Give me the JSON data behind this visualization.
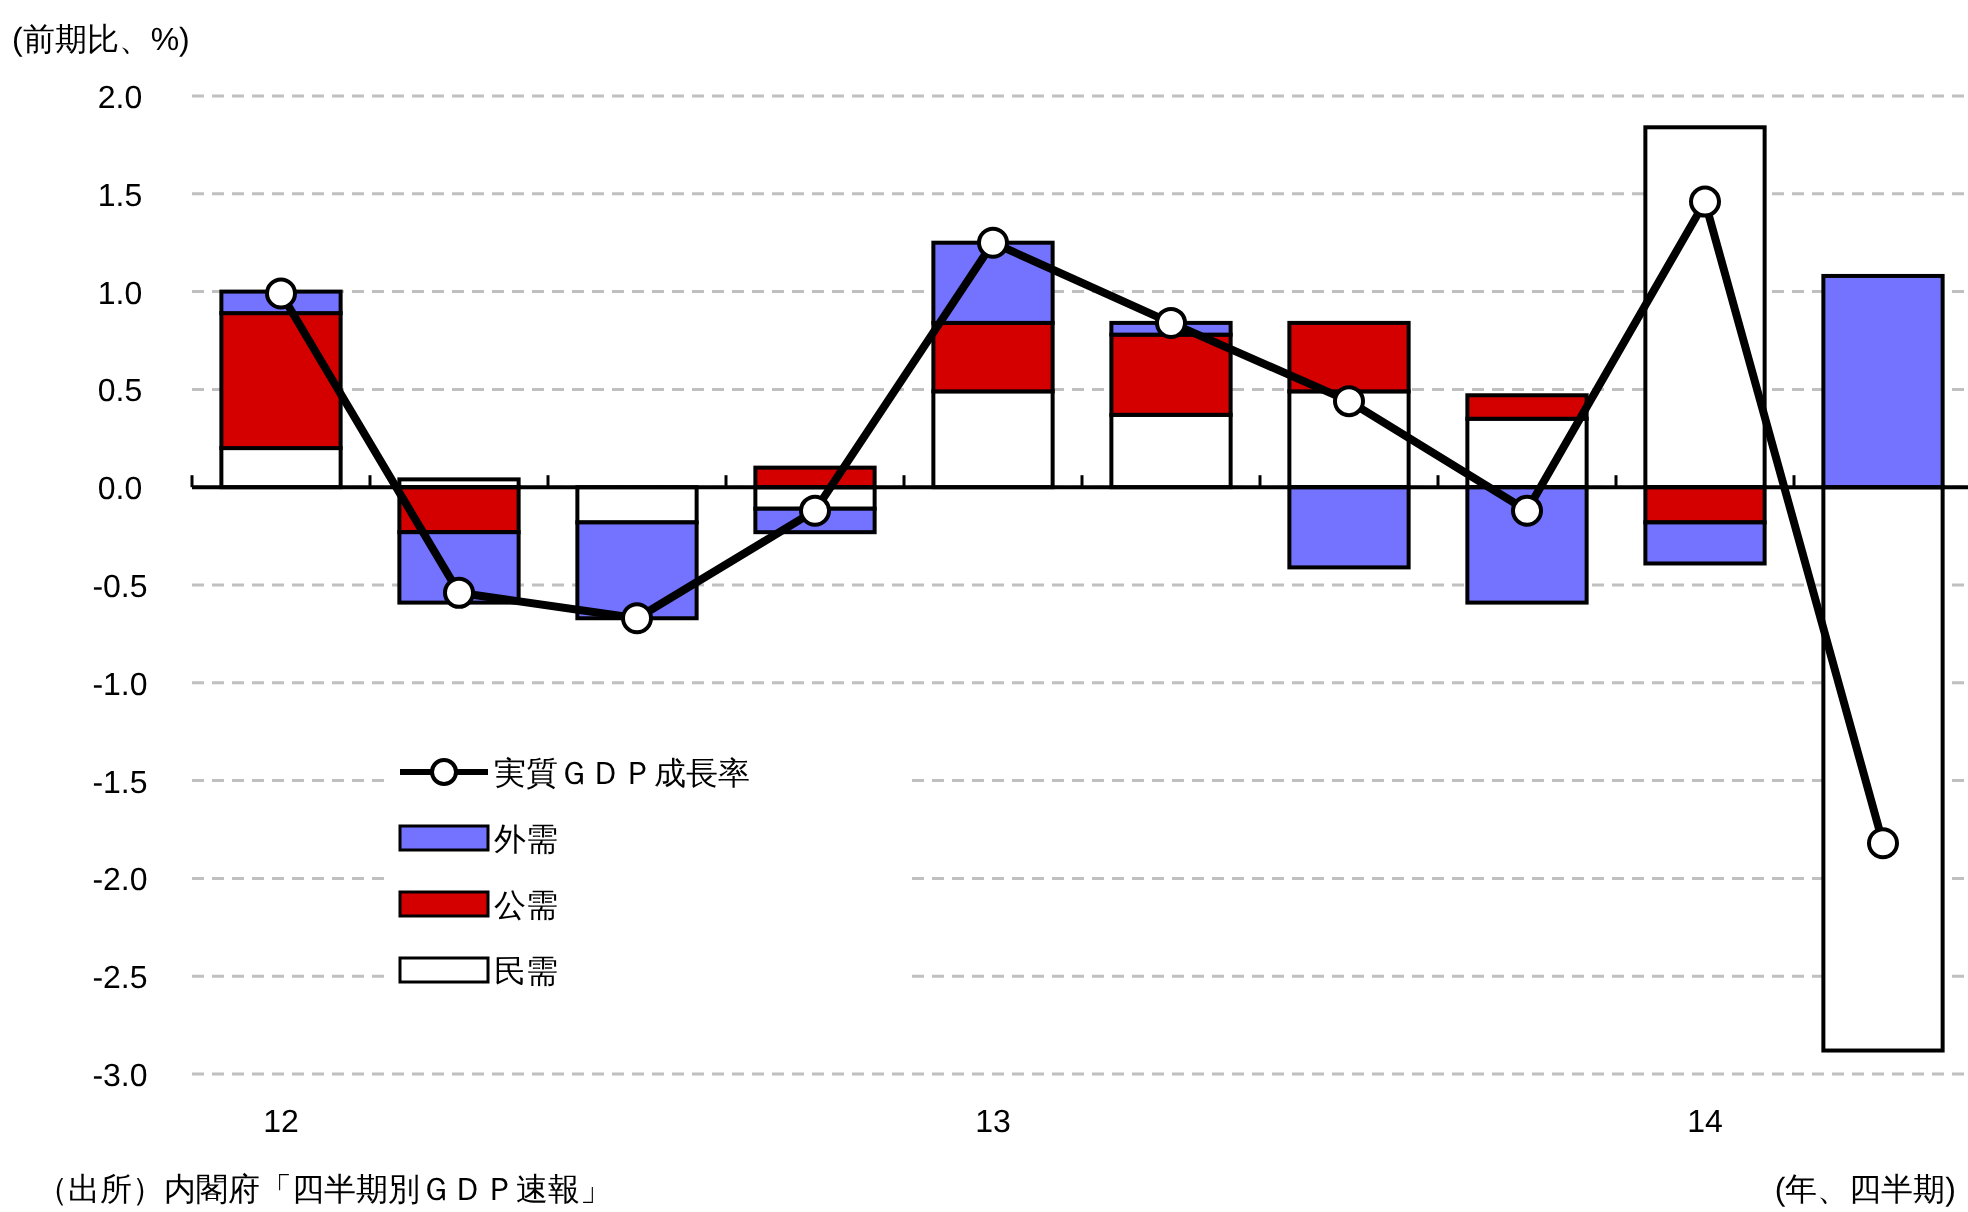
{
  "chart_data": {
    "type": "bar",
    "stacked": true,
    "ylabel": "(前期比、%)",
    "xlabel": "(年、四半期)",
    "annotations": [
      "（出所）内閣府「四半期別ＧＤＰ速報」"
    ],
    "categories": [
      "12",
      null,
      null,
      null,
      "13",
      null,
      null,
      null,
      "14",
      null
    ],
    "series": [
      {
        "name": "民需",
        "color": "#ffffff",
        "values": [
          0.2,
          0.04,
          -0.18,
          -0.11,
          0.49,
          0.37,
          0.49,
          0.35,
          1.84,
          -2.88
        ]
      },
      {
        "name": "公需",
        "color": "#d40000",
        "values": [
          0.69,
          -0.23,
          0,
          0.1,
          0.35,
          0.41,
          0.35,
          0.12,
          -0.18,
          0
        ]
      },
      {
        "name": "外需",
        "color": "#7373ff",
        "values": [
          0.11,
          -0.36,
          -0.49,
          -0.12,
          0.41,
          0.06,
          -0.41,
          -0.59,
          -0.21,
          1.08
        ]
      },
      {
        "name": "実質ＧＤＰ成長率",
        "type": "line",
        "color": "#000000",
        "marker": "circle",
        "line_style": "solid",
        "values": [
          0.99,
          -0.54,
          -0.67,
          -0.12,
          1.25,
          0.84,
          0.44,
          -0.12,
          1.46,
          -1.82
        ]
      }
    ],
    "ylim": [
      -3.0,
      2.0
    ],
    "yticks": [
      {
        "value": -3,
        "label": "-3.0"
      },
      {
        "value": -2.5,
        "label": "-2.5"
      },
      {
        "value": -2,
        "label": "-2.0"
      },
      {
        "value": -1.5,
        "label": "-1.5"
      },
      {
        "value": -1,
        "label": "-1.0"
      },
      {
        "value": -0.5,
        "label": "-0.5"
      },
      {
        "value": 0,
        "label": "0.0"
      },
      {
        "value": 0.5,
        "label": "0.5"
      },
      {
        "value": 1,
        "label": "1.0"
      },
      {
        "value": 1.5,
        "label": "1.5"
      },
      {
        "value": 2,
        "label": "2.0"
      }
    ],
    "grid": "y",
    "legend": "bottom left"
  }
}
